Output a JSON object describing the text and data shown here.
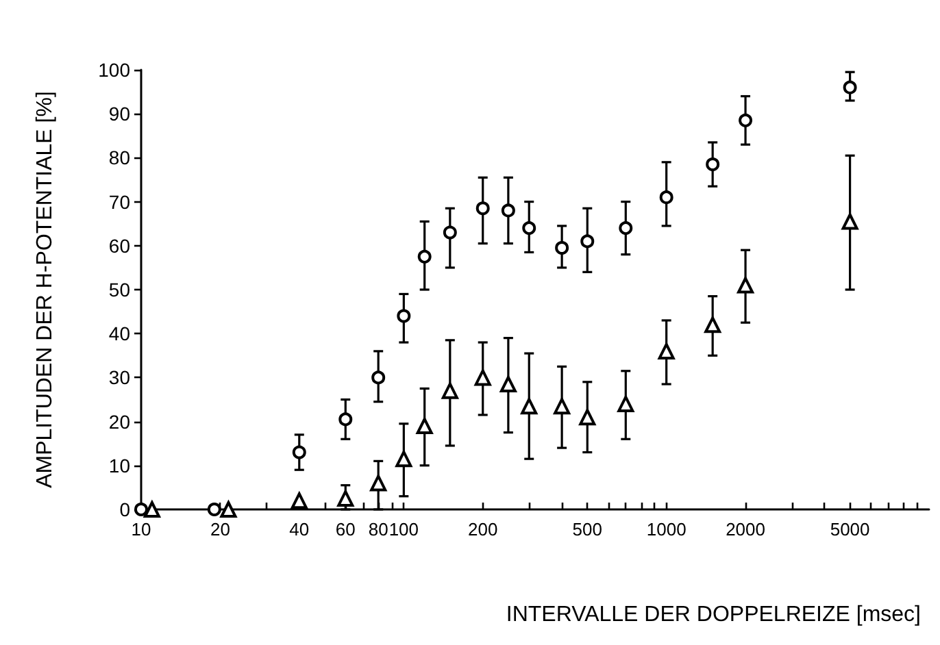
{
  "chart_data": {
    "type": "scatter",
    "xlabel": "INTERVALLE DER DOPPELREIZE [msec]",
    "ylabel": "AMPLITUDEN DER H-POTENTIALE [%]",
    "log": "x",
    "xlim": [
      10,
      10000
    ],
    "xticks": [
      10,
      20,
      {
        "value": 30,
        "label": null
      },
      40,
      {
        "value": 50,
        "label": null
      },
      60,
      {
        "value": 70,
        "label": null
      },
      80,
      {
        "value": 90,
        "label": null
      },
      100,
      200,
      {
        "value": 300,
        "label": null
      },
      {
        "value": 400,
        "label": null
      },
      500,
      {
        "value": 600,
        "label": null
      },
      {
        "value": 700,
        "label": null
      },
      {
        "value": 800,
        "label": null
      },
      {
        "value": 900,
        "label": null
      },
      1000,
      2000,
      {
        "value": 3000,
        "label": null
      },
      {
        "value": 4000,
        "label": null
      },
      5000,
      {
        "value": 6000,
        "label": null
      },
      {
        "value": 7000,
        "label": null
      },
      {
        "value": 8000,
        "label": null
      },
      {
        "value": 9000,
        "label": null
      }
    ],
    "ylim": [
      0,
      100
    ],
    "yticks": [
      0,
      10,
      20,
      30,
      40,
      50,
      60,
      70,
      80,
      90,
      100
    ],
    "series": [
      {
        "color": "#000000",
        "marker": "circle",
        "x": [
          10,
          19,
          40,
          60,
          80,
          100,
          120,
          150,
          200,
          250,
          300,
          400,
          500,
          700,
          1000,
          1500,
          2000,
          5000
        ],
        "values": [
          0,
          0,
          13,
          20.5,
          30,
          44,
          57.5,
          63,
          68.5,
          68,
          64,
          59.5,
          61,
          64,
          71,
          78.5,
          88.5,
          96
        ],
        "errors": [
          null,
          null,
          [
            9,
            17
          ],
          [
            16,
            25
          ],
          [
            24.5,
            36
          ],
          [
            38,
            49
          ],
          [
            50,
            65.5
          ],
          [
            55,
            68.5
          ],
          [
            60.5,
            75.5
          ],
          [
            60.5,
            75.5
          ],
          [
            58.5,
            70
          ],
          [
            55,
            64.5
          ],
          [
            54,
            68.5
          ],
          [
            58,
            70
          ],
          [
            64.5,
            79
          ],
          [
            73.5,
            83.5
          ],
          [
            83,
            94
          ],
          [
            93,
            99.5
          ]
        ]
      },
      {
        "color": "#000000",
        "marker": "triangle",
        "x": [
          11,
          21.5,
          40,
          60,
          80,
          100,
          120,
          150,
          200,
          250,
          300,
          400,
          500,
          700,
          1000,
          1500,
          2000,
          5000
        ],
        "values": [
          0,
          0,
          2,
          2.5,
          6,
          11.5,
          19,
          27,
          30,
          28.5,
          23.5,
          23.5,
          21,
          24,
          36,
          42,
          51,
          65.5
        ],
        "errors": [
          null,
          null,
          null,
          [
            0,
            5.5
          ],
          [
            0,
            11
          ],
          [
            3,
            19.5
          ],
          [
            10,
            27.5
          ],
          [
            14.5,
            38.5
          ],
          [
            21.5,
            38
          ],
          [
            17.5,
            39
          ],
          [
            11.5,
            35.5
          ],
          [
            14,
            32.5
          ],
          [
            13,
            29
          ],
          [
            16,
            31.5
          ],
          [
            28.5,
            43
          ],
          [
            35,
            48.5
          ],
          [
            42.5,
            59
          ],
          [
            50,
            80.5
          ]
        ]
      }
    ]
  }
}
